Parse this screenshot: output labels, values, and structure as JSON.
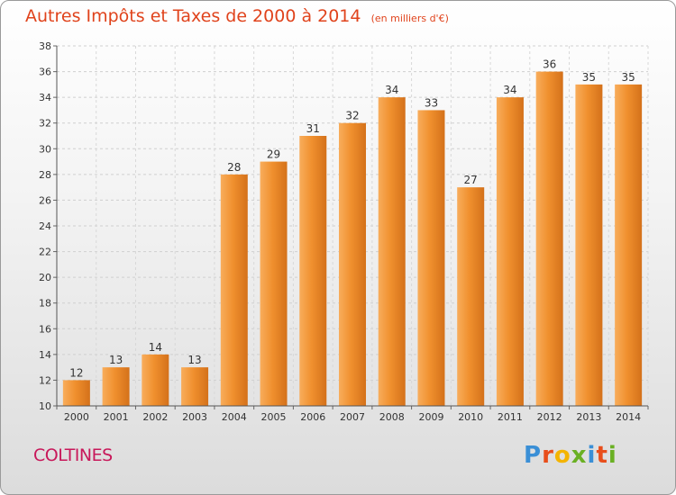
{
  "chart_data": {
    "type": "bar",
    "title": "Autres Impôts et Taxes de 2000 à 2014",
    "unit": "(en milliers d'€)",
    "categories": [
      "2000",
      "2001",
      "2002",
      "2003",
      "2004",
      "2005",
      "2006",
      "2007",
      "2008",
      "2009",
      "2010",
      "2011",
      "2012",
      "2013",
      "2014"
    ],
    "values": [
      12,
      13,
      14,
      13,
      28,
      29,
      31,
      32,
      34,
      33,
      27,
      34,
      36,
      35,
      35
    ],
    "ylim": [
      10,
      38
    ],
    "yticks": [
      10,
      12,
      14,
      16,
      18,
      20,
      22,
      24,
      26,
      28,
      30,
      32,
      34,
      36,
      38
    ],
    "grid": true,
    "bar_color": "#f0902e",
    "bar_color_light": "#f8ad5c",
    "bar_color_dark": "#d4711a",
    "title_color": "#e0431c"
  },
  "footer": {
    "commune": "COLTINES",
    "brand_letters": [
      {
        "ch": "P",
        "color": "#3a8fd6"
      },
      {
        "ch": "r",
        "color": "#e84e1b"
      },
      {
        "ch": "o",
        "color": "#f4b400"
      },
      {
        "ch": "x",
        "color": "#6ab023"
      },
      {
        "ch": "i",
        "color": "#3a8fd6"
      },
      {
        "ch": "t",
        "color": "#e84e1b"
      },
      {
        "ch": "i",
        "color": "#6ab023"
      }
    ]
  }
}
